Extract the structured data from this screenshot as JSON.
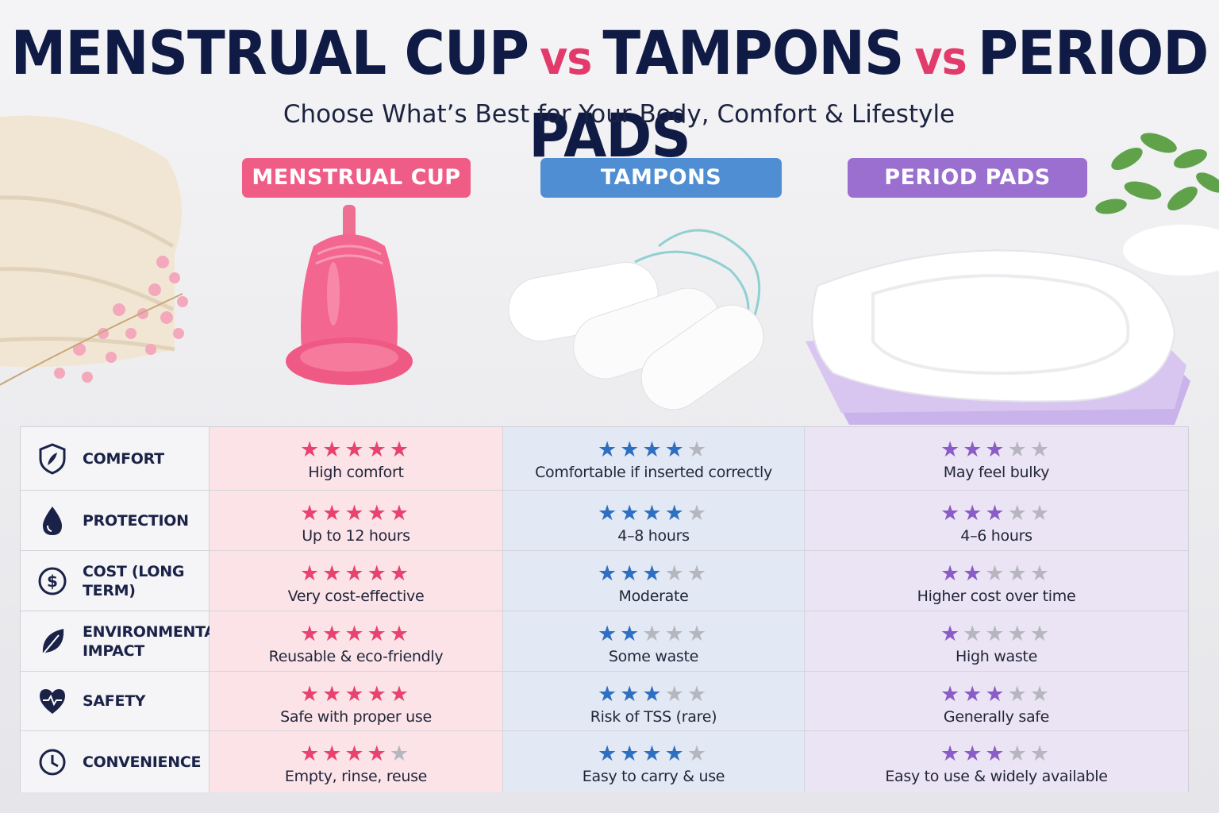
{
  "title": {
    "part1": "MENSTRUAL CUP",
    "vs1": "vs",
    "part2": "TAMPONS",
    "vs2": "vs",
    "part3": "PERIOD PADS"
  },
  "subtitle": "Choose What’s Best for Your Body, Comfort & Lifestyle",
  "columns": {
    "cup": "MENSTRUAL CUP",
    "tampons": "TAMPONS",
    "pads": "PERIOD PADS"
  },
  "colors": {
    "cup": "#e8426f",
    "tampons": "#2f6fc2",
    "pads": "#8a5cc7",
    "title": "#0f1a45"
  },
  "rows": [
    {
      "label": "COMFORT",
      "icon": "shield-feather-icon",
      "cup": {
        "stars": 5,
        "text": "High comfort"
      },
      "tampons": {
        "stars": 4,
        "text": "Comfortable if inserted correctly"
      },
      "pads": {
        "stars": 3,
        "text": "May feel bulky"
      }
    },
    {
      "label": "PROTECTION",
      "icon": "drop-icon",
      "cup": {
        "stars": 5,
        "text": "Up to 12 hours"
      },
      "tampons": {
        "stars": 4,
        "text": "4–8 hours"
      },
      "pads": {
        "stars": 3,
        "text": "4–6 hours"
      }
    },
    {
      "label": "COST (LONG TERM)",
      "icon": "dollar-icon",
      "cup": {
        "stars": 5,
        "text": "Very cost-effective"
      },
      "tampons": {
        "stars": 3,
        "text": "Moderate"
      },
      "pads": {
        "stars": 2,
        "text": "Higher cost over time"
      }
    },
    {
      "label": "ENVIRONMENTAL IMPACT",
      "icon": "leaf-icon",
      "cup": {
        "stars": 5,
        "text": "Reusable & eco-friendly"
      },
      "tampons": {
        "stars": 2,
        "text": "Some waste"
      },
      "pads": {
        "stars": 1,
        "text": "High waste"
      }
    },
    {
      "label": "SAFETY",
      "icon": "heart-pulse-icon",
      "cup": {
        "stars": 5,
        "text": "Safe with proper use"
      },
      "tampons": {
        "stars": 3,
        "text": "Risk of TSS (rare)"
      },
      "pads": {
        "stars": 3,
        "text": "Generally safe"
      }
    },
    {
      "label": "CONVENIENCE",
      "icon": "clock-icon",
      "cup": {
        "stars": 4,
        "text": "Empty, rinse, reuse"
      },
      "tampons": {
        "stars": 4,
        "text": "Easy to carry & use"
      },
      "pads": {
        "stars": 3,
        "text": "Easy to use & widely available"
      }
    }
  ]
}
